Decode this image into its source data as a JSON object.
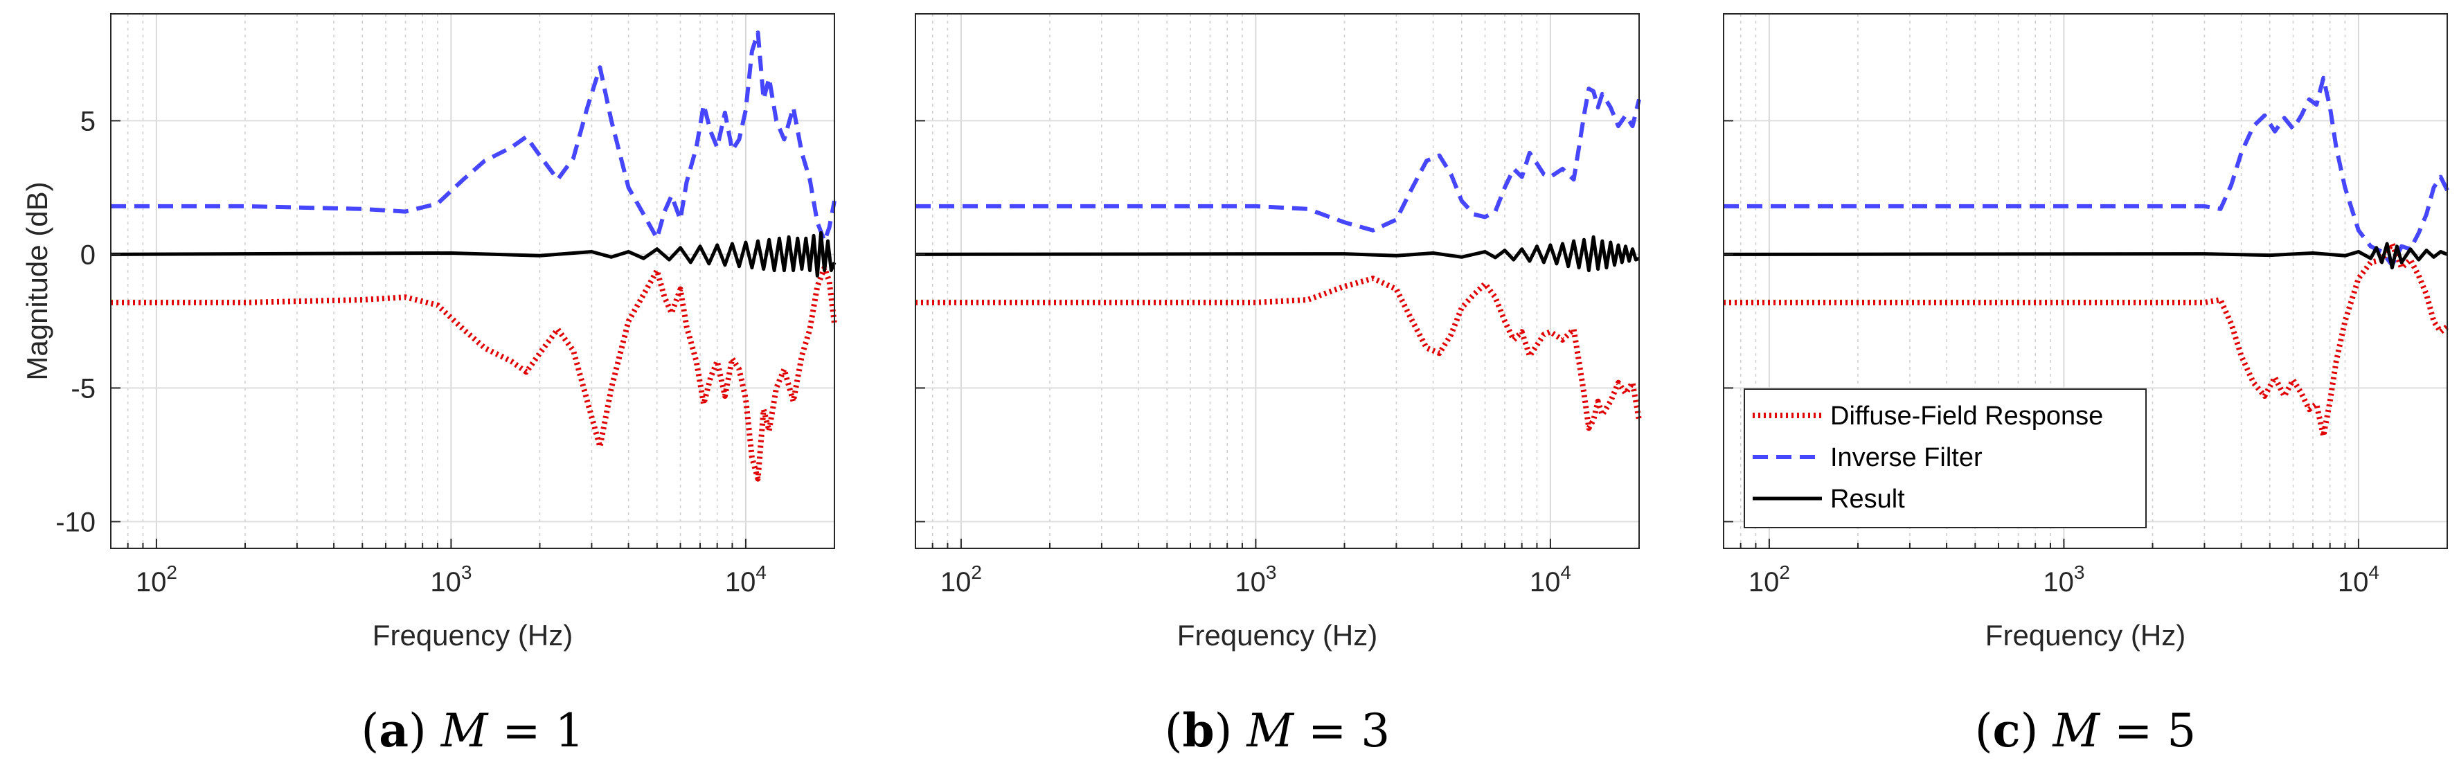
{
  "chart_data": [
    {
      "type": "line",
      "panel": "a",
      "caption_label": "a",
      "caption_var": "M",
      "caption_eq": "= 1",
      "xscale": "log",
      "xlim": [
        70,
        20000
      ],
      "ylim": [
        -11,
        9
      ],
      "xlabel": "Frequency (Hz)",
      "ylabel": "Magnitude (dB)",
      "show_yticklabels": true,
      "grid": true,
      "series": [
        {
          "name": "Diffuse-Field Response",
          "color": "#e00000",
          "style": "dotted",
          "x": [
            70,
            200,
            500,
            700,
            900,
            1100,
            1300,
            1600,
            1800,
            2000,
            2300,
            2600,
            2900,
            3200,
            3500,
            4000,
            4500,
            5000,
            5300,
            5600,
            6000,
            6300,
            6800,
            7200,
            7600,
            8000,
            8500,
            9000,
            9500,
            10000,
            10500,
            11000,
            11500,
            12000,
            12700,
            13500,
            14500,
            15500,
            16500,
            17500,
            18500,
            19200,
            20000
          ],
          "y": [
            -1.8,
            -1.8,
            -1.7,
            -1.6,
            -1.9,
            -2.8,
            -3.5,
            -4.0,
            -4.4,
            -3.7,
            -2.8,
            -3.6,
            -5.5,
            -7.2,
            -5.0,
            -2.5,
            -1.5,
            -0.6,
            -1.6,
            -2.2,
            -1.3,
            -2.7,
            -4.0,
            -5.6,
            -4.6,
            -4.0,
            -5.3,
            -3.9,
            -4.3,
            -5.4,
            -7.6,
            -8.4,
            -5.8,
            -6.6,
            -5.0,
            -4.3,
            -5.5,
            -3.8,
            -2.8,
            -1.2,
            -0.5,
            -1.0,
            -2.6
          ]
        },
        {
          "name": "Inverse Filter",
          "color": "#4646ff",
          "style": "dashed",
          "x": [
            70,
            200,
            500,
            700,
            900,
            1100,
            1300,
            1600,
            1800,
            2000,
            2300,
            2600,
            2900,
            3200,
            3500,
            4000,
            4500,
            5000,
            5300,
            5600,
            6000,
            6300,
            6800,
            7200,
            7600,
            8000,
            8500,
            9000,
            9500,
            10000,
            10500,
            11000,
            11500,
            12000,
            12700,
            13500,
            14500,
            15500,
            16500,
            17500,
            18500,
            19200,
            20000
          ],
          "y": [
            1.8,
            1.8,
            1.7,
            1.6,
            1.9,
            2.8,
            3.5,
            4.0,
            4.4,
            3.7,
            2.8,
            3.6,
            5.5,
            7.0,
            5.0,
            2.5,
            1.5,
            0.6,
            1.6,
            2.2,
            1.3,
            2.7,
            4.0,
            5.6,
            4.6,
            4.0,
            5.3,
            3.9,
            4.3,
            5.4,
            7.6,
            8.3,
            5.8,
            6.6,
            5.0,
            4.3,
            5.5,
            3.8,
            2.8,
            1.2,
            0.5,
            1.0,
            2.0
          ]
        },
        {
          "name": "Result",
          "color": "#000000",
          "style": "solid",
          "x": [
            70,
            1000,
            2000,
            3000,
            3500,
            4000,
            4500,
            5000,
            5500,
            6000,
            6500,
            7000,
            7500,
            8000,
            8500,
            9000,
            9500,
            10000,
            10500,
            11000,
            11500,
            12000,
            12500,
            13000,
            13500,
            14000,
            14500,
            15000,
            15500,
            16000,
            16500,
            17000,
            17500,
            18000,
            18500,
            19000,
            19500,
            20000
          ],
          "y": [
            0,
            0.05,
            -0.05,
            0.1,
            -0.1,
            0.1,
            -0.15,
            0.2,
            -0.2,
            0.25,
            -0.3,
            0.3,
            -0.35,
            0.35,
            -0.4,
            0.4,
            -0.45,
            0.45,
            -0.5,
            0.5,
            -0.55,
            0.55,
            -0.6,
            0.6,
            -0.6,
            0.65,
            -0.6,
            0.6,
            -0.55,
            0.6,
            -0.6,
            0.7,
            -0.8,
            0.8,
            -0.6,
            0.5,
            -0.6,
            -0.3
          ]
        }
      ]
    },
    {
      "type": "line",
      "panel": "b",
      "caption_label": "b",
      "caption_var": "M",
      "caption_eq": "= 3",
      "xscale": "log",
      "xlim": [
        70,
        20000
      ],
      "ylim": [
        -11,
        9
      ],
      "xlabel": "Frequency (Hz)",
      "ylabel": "",
      "show_yticklabels": false,
      "grid": true,
      "series": [
        {
          "name": "Diffuse-Field Response",
          "color": "#e00000",
          "style": "dotted",
          "x": [
            70,
            300,
            700,
            1000,
            1500,
            2000,
            2500,
            3000,
            3400,
            3800,
            4200,
            4600,
            5000,
            5500,
            6000,
            6500,
            7000,
            7500,
            8000,
            8500,
            9000,
            9500,
            10000,
            11000,
            12000,
            12500,
            13000,
            13500,
            14000,
            14500,
            15000,
            16000,
            17000,
            18000,
            19000,
            20000
          ],
          "y": [
            -1.8,
            -1.8,
            -1.8,
            -1.8,
            -1.7,
            -1.2,
            -0.9,
            -1.3,
            -2.5,
            -3.5,
            -3.7,
            -3.0,
            -2.0,
            -1.5,
            -1.1,
            -1.6,
            -2.5,
            -3.2,
            -2.9,
            -3.8,
            -3.4,
            -3.0,
            -2.9,
            -3.2,
            -2.8,
            -4.0,
            -5.2,
            -6.5,
            -6.2,
            -5.5,
            -6.0,
            -5.5,
            -4.8,
            -5.2,
            -4.8,
            -6.2
          ]
        },
        {
          "name": "Inverse Filter",
          "color": "#4646ff",
          "style": "dashed",
          "x": [
            70,
            300,
            700,
            1000,
            1500,
            2000,
            2500,
            3000,
            3400,
            3800,
            4200,
            4600,
            5000,
            5500,
            6000,
            6500,
            7000,
            7500,
            8000,
            8500,
            9000,
            9500,
            10000,
            11000,
            12000,
            12500,
            13000,
            13500,
            14000,
            14500,
            15000,
            16000,
            17000,
            18000,
            19000,
            20000
          ],
          "y": [
            1.8,
            1.8,
            1.8,
            1.8,
            1.7,
            1.2,
            0.9,
            1.3,
            2.5,
            3.5,
            3.7,
            3.0,
            2.0,
            1.5,
            1.4,
            1.6,
            2.5,
            3.2,
            2.9,
            3.8,
            3.4,
            3.0,
            2.9,
            3.2,
            2.8,
            4.0,
            5.2,
            6.2,
            6.1,
            5.5,
            6.0,
            5.5,
            4.8,
            5.2,
            4.8,
            5.8
          ]
        },
        {
          "name": "Result",
          "color": "#000000",
          "style": "solid",
          "x": [
            70,
            2000,
            3000,
            4000,
            5000,
            6000,
            6500,
            7000,
            7500,
            8000,
            8500,
            9000,
            9500,
            10000,
            10500,
            11000,
            11500,
            12000,
            12500,
            13000,
            13500,
            14000,
            14500,
            15000,
            15500,
            16000,
            16500,
            17000,
            17500,
            18000,
            18500,
            19000,
            19500,
            20000
          ],
          "y": [
            0,
            0.02,
            -0.05,
            0.05,
            -0.1,
            0.1,
            -0.12,
            0.15,
            -0.2,
            0.2,
            -0.25,
            0.3,
            -0.3,
            0.35,
            -0.35,
            0.4,
            -0.45,
            0.5,
            -0.5,
            0.55,
            -0.6,
            0.65,
            -0.55,
            0.5,
            -0.5,
            0.45,
            -0.4,
            0.35,
            -0.3,
            0.3,
            -0.25,
            0.2,
            -0.2,
            -0.15
          ]
        }
      ]
    },
    {
      "type": "line",
      "panel": "c",
      "caption_label": "c",
      "caption_var": "M",
      "caption_eq": "= 5",
      "xscale": "log",
      "xlim": [
        70,
        20000
      ],
      "ylim": [
        -11,
        9
      ],
      "xlabel": "Frequency (Hz)",
      "ylabel": "",
      "show_yticklabels": false,
      "grid": true,
      "legend": {
        "position": "bottom-left",
        "entries": [
          "Diffuse-Field Response",
          "Inverse Filter",
          "Result"
        ]
      },
      "series": [
        {
          "name": "Diffuse-Field Response",
          "color": "#e00000",
          "style": "dotted",
          "x": [
            70,
            500,
            1000,
            2000,
            3000,
            3400,
            3700,
            4000,
            4400,
            4800,
            5200,
            5600,
            6000,
            6400,
            6800,
            7200,
            7600,
            8000,
            8400,
            9000,
            10000,
            11000,
            12000,
            13000,
            14000,
            15000,
            16000,
            17000,
            18000,
            19000,
            20000
          ],
          "y": [
            -1.8,
            -1.8,
            -1.8,
            -1.8,
            -1.8,
            -1.7,
            -2.6,
            -3.8,
            -4.8,
            -5.3,
            -4.6,
            -5.3,
            -4.7,
            -5.2,
            -5.8,
            -5.6,
            -6.8,
            -5.5,
            -4.0,
            -2.5,
            -0.9,
            -0.3,
            -0.2,
            0.4,
            -0.5,
            -0.2,
            -0.8,
            -1.5,
            -2.5,
            -2.9,
            -2.7
          ]
        },
        {
          "name": "Inverse Filter",
          "color": "#4646ff",
          "style": "dashed",
          "x": [
            70,
            500,
            1000,
            2000,
            3000,
            3400,
            3700,
            4000,
            4400,
            4800,
            5200,
            5600,
            6000,
            6400,
            6800,
            7200,
            7600,
            8000,
            8400,
            9000,
            10000,
            11000,
            12000,
            13000,
            14000,
            15000,
            16000,
            17000,
            18000,
            19000,
            20000
          ],
          "y": [
            1.8,
            1.8,
            1.8,
            1.8,
            1.8,
            1.7,
            2.6,
            3.8,
            4.8,
            5.2,
            4.6,
            5.1,
            4.7,
            5.2,
            5.8,
            5.6,
            6.6,
            5.5,
            4.0,
            2.5,
            0.9,
            0.3,
            0.1,
            -0.4,
            0.3,
            0.2,
            0.8,
            1.5,
            2.5,
            2.9,
            2.4
          ]
        },
        {
          "name": "Result",
          "color": "#000000",
          "style": "solid",
          "x": [
            70,
            3000,
            5000,
            7000,
            9000,
            10000,
            11000,
            11500,
            12000,
            12500,
            13000,
            13500,
            14000,
            15000,
            16000,
            17000,
            18000,
            19000,
            20000
          ],
          "y": [
            0,
            0.02,
            -0.03,
            0.05,
            -0.05,
            0.1,
            -0.15,
            0.25,
            -0.3,
            0.4,
            -0.5,
            0.3,
            -0.3,
            0.2,
            -0.2,
            0.15,
            -0.1,
            0.1,
            0.0
          ]
        }
      ]
    }
  ]
}
